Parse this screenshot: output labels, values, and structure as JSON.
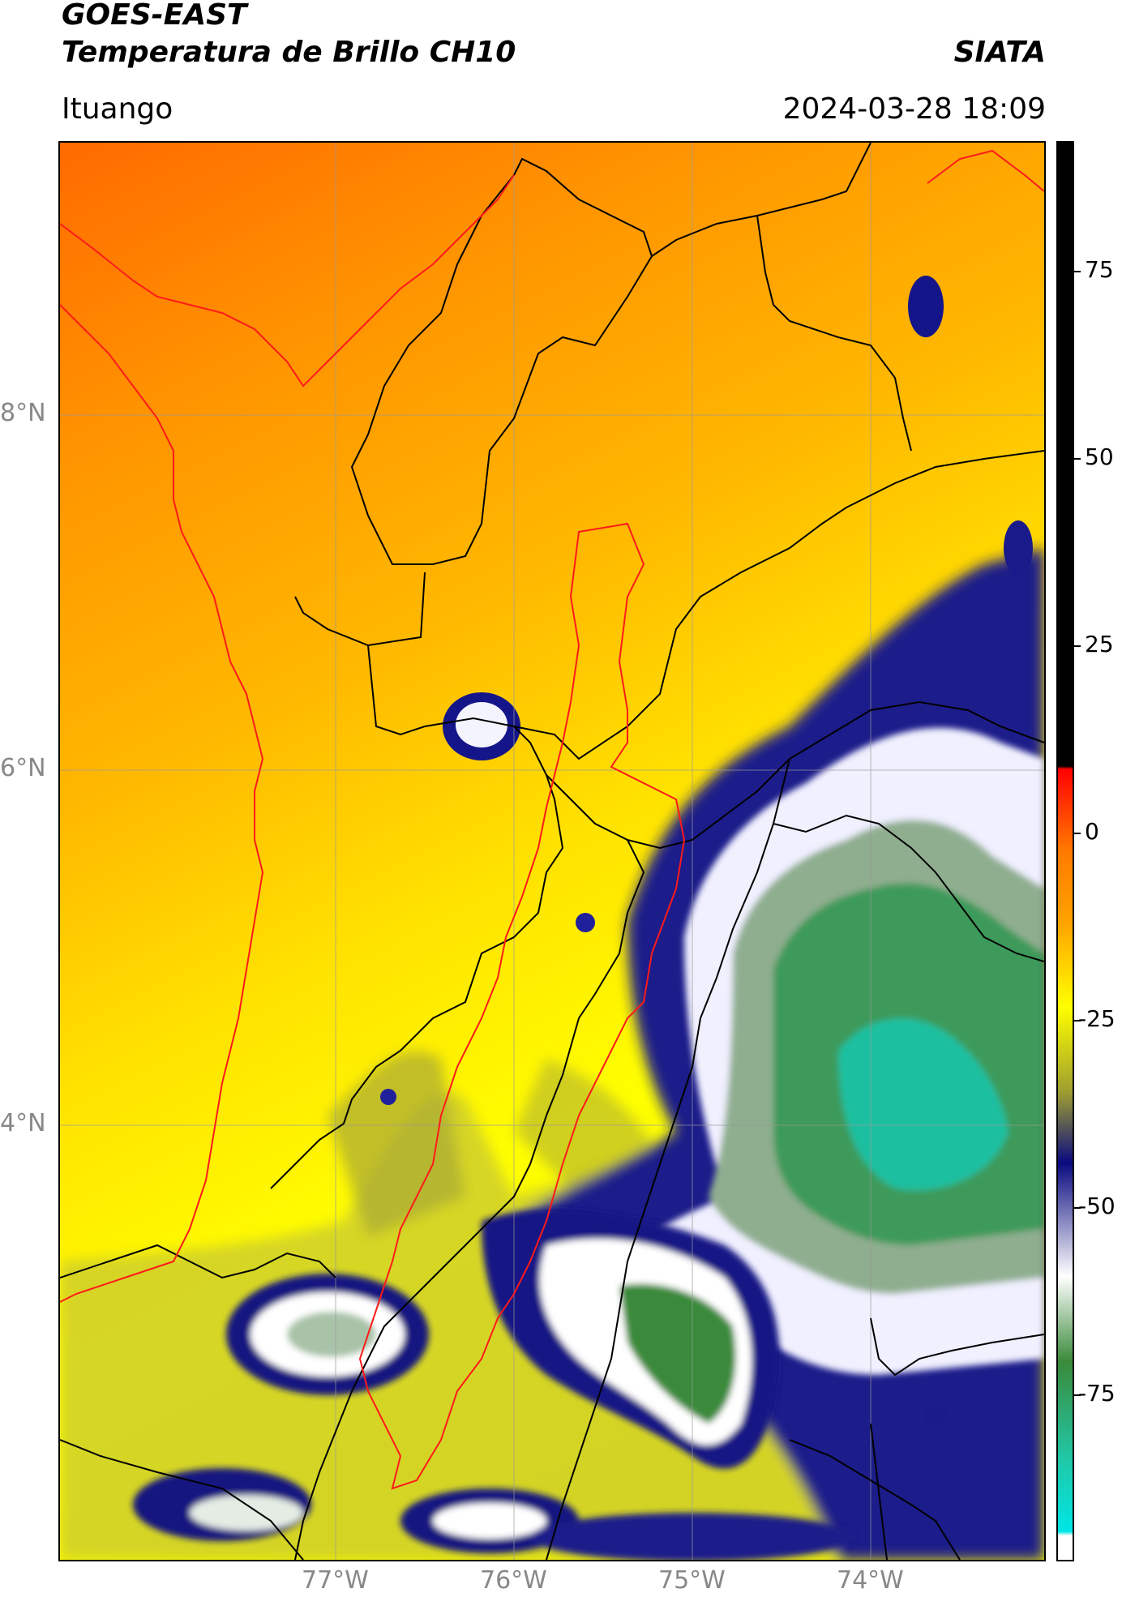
{
  "header": {
    "satellite": "GOES-EAST",
    "product": "Temperatura de Brillo CH10",
    "org": "SIATA",
    "location": "Ituango",
    "datetime": "2024-03-28 18:09"
  },
  "map": {
    "lon_labels": [
      "77°W",
      "76°W",
      "75°W",
      "74°W"
    ],
    "lat_labels": [
      "8°N",
      "6°N",
      "4°N"
    ],
    "lon_values": [
      -77,
      -76,
      -75,
      -74
    ],
    "lat_values": [
      8,
      6,
      4
    ]
  },
  "colorbar": {
    "labels": [
      "75",
      "50",
      "25",
      "0",
      "-25",
      "-50",
      "-75"
    ],
    "values": [
      75,
      50,
      25,
      0,
      -25,
      -50,
      -75
    ],
    "range": [
      -93,
      92
    ],
    "colors": {
      "warm_orange": "#ff7a00",
      "orange": "#ffa200",
      "yellow": "#ffff00",
      "olive": "#9e9e30",
      "navy": "#0a0a80",
      "white": "#ffffff",
      "green": "#3a8a3a",
      "teal": "#20c8a8",
      "cyan": "#00e6e6",
      "red": "#ff0000",
      "black": "#000000"
    }
  }
}
